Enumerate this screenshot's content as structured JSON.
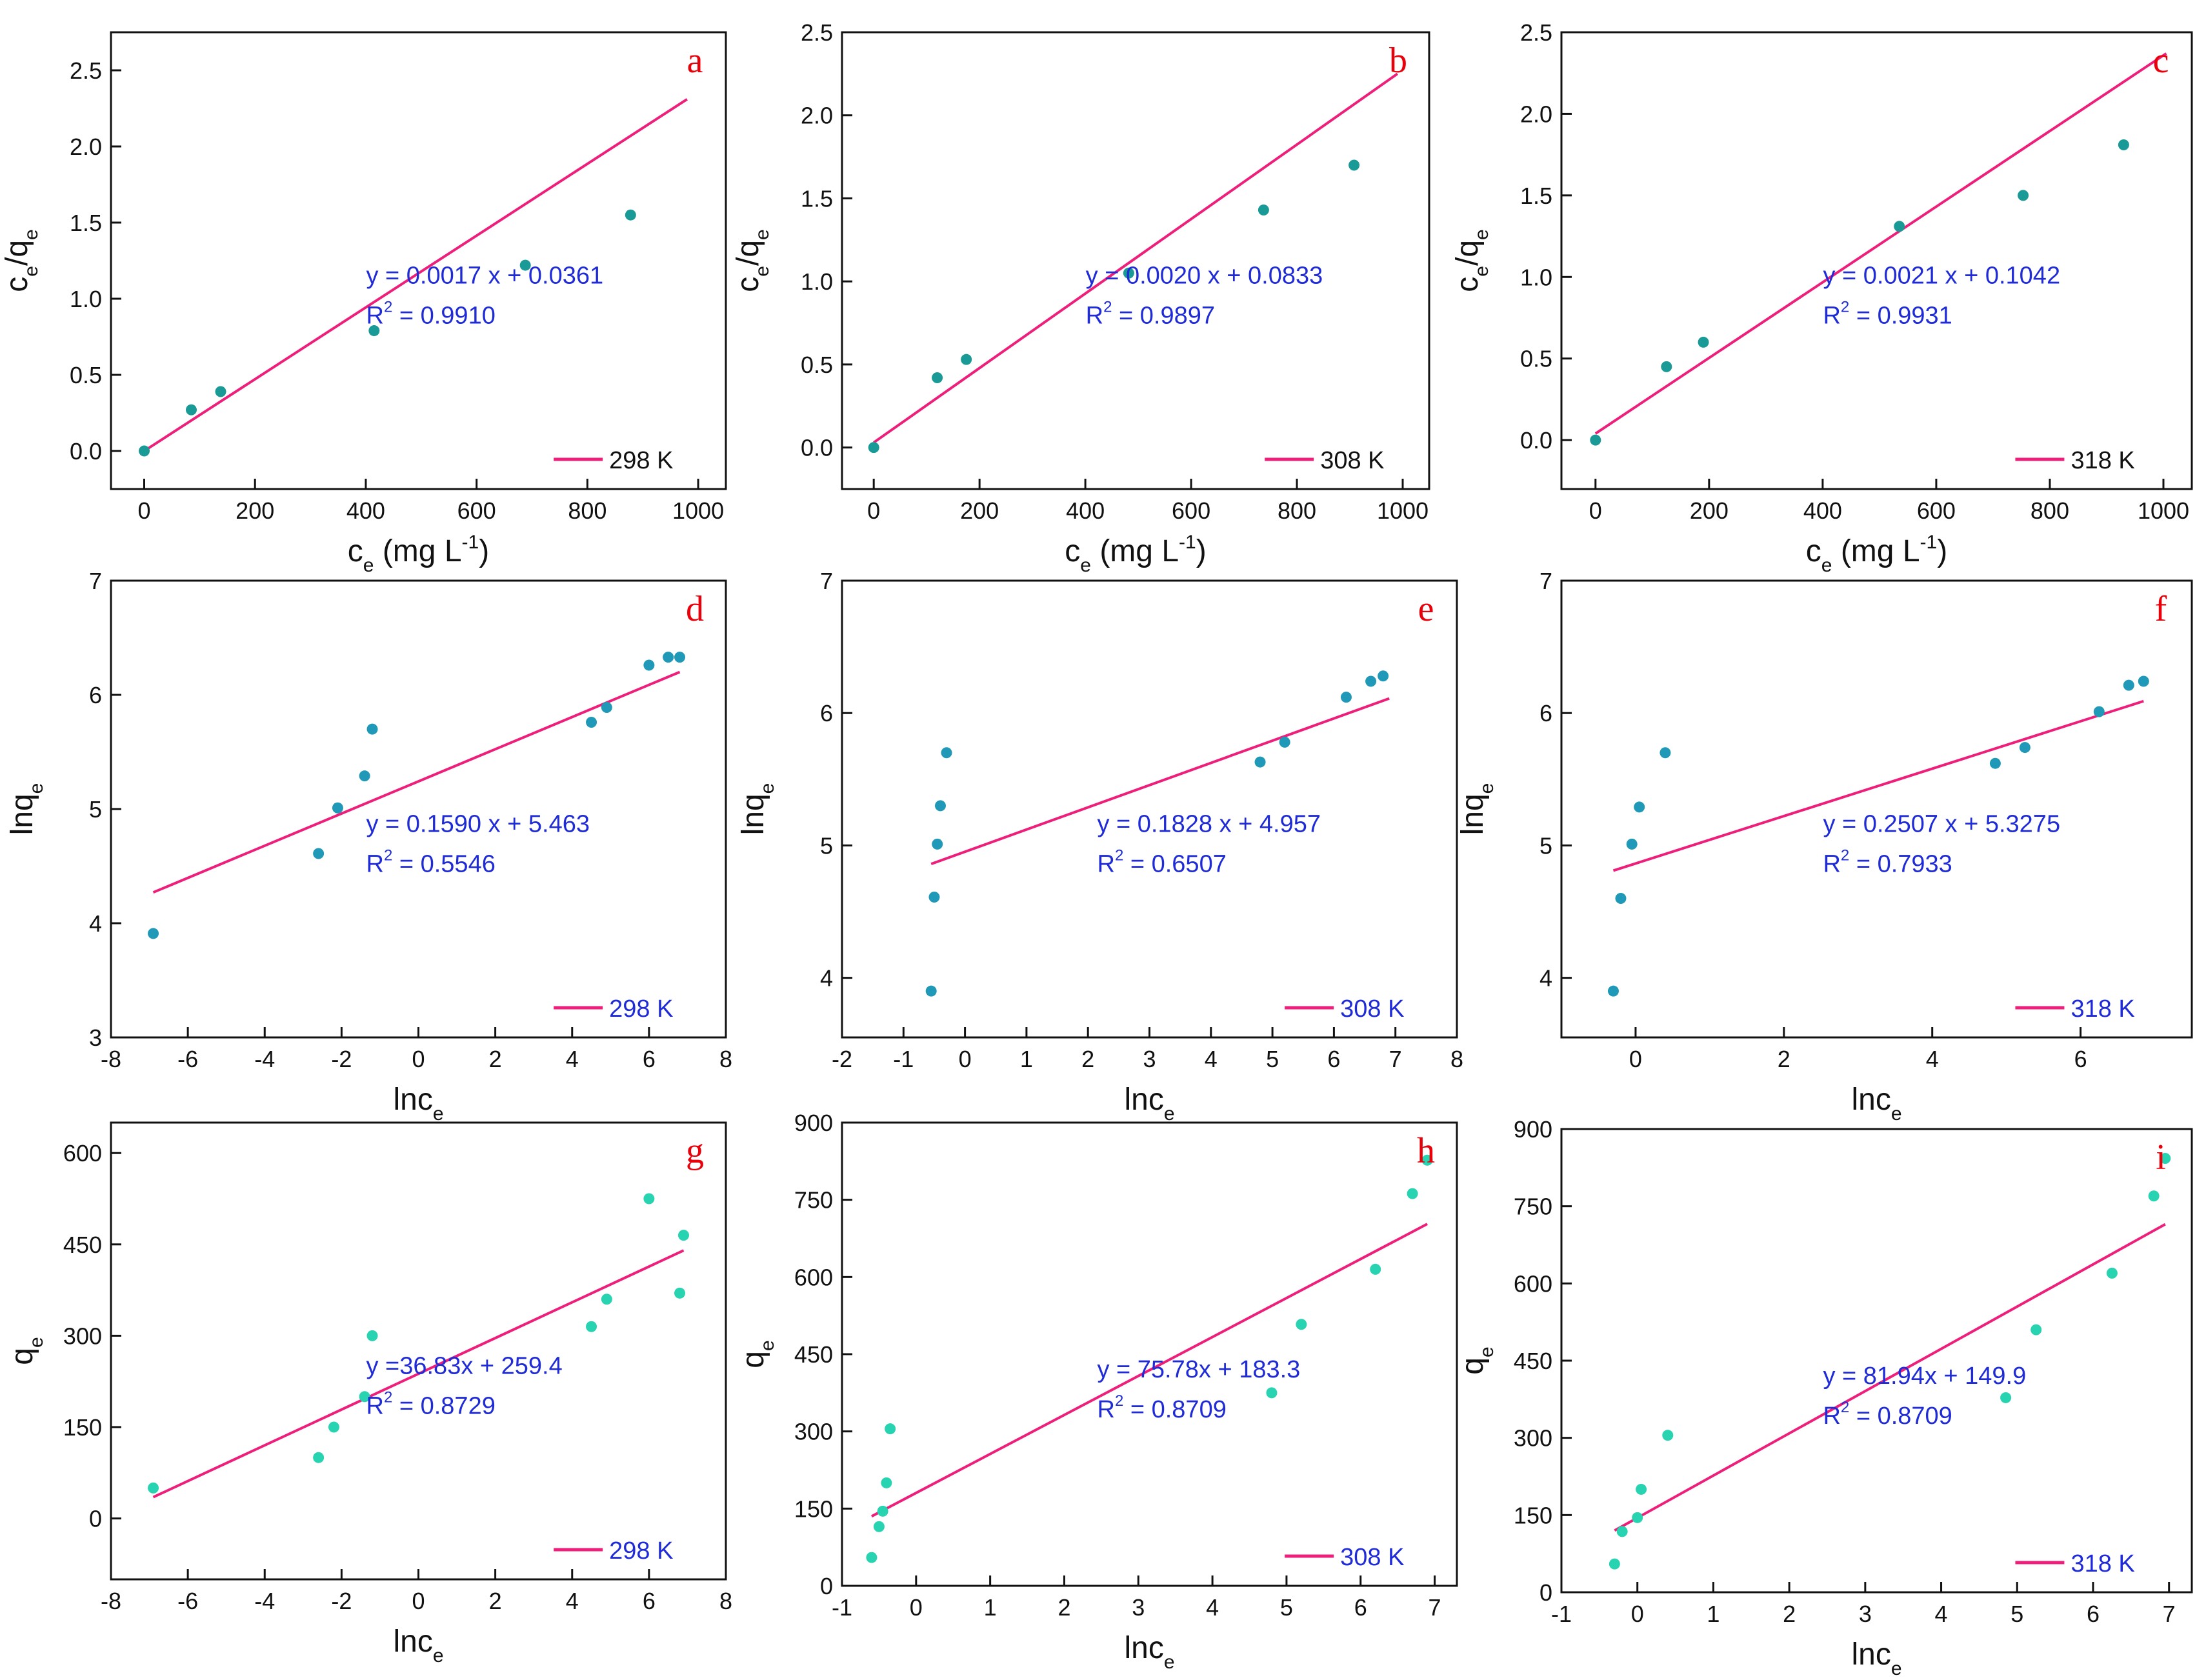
{
  "colors": {
    "fit_line": "#ee1f7a",
    "points_isotherm": "#1a9a96",
    "points_freundlich": "#1f99b7",
    "points_temkin": "#27d3b0",
    "equation_text": "#1f2bd6",
    "panel_letter": "#e8000b"
  },
  "chart_data": [
    {
      "id": "a",
      "type": "scatter",
      "panel_label": "a",
      "xlabel": "c",
      "xlabel_sub": "e",
      "xlabel_unit": " (mg L",
      "xlabel_sup": "-1",
      "xlabel_end": ")",
      "ylabel_parts": [
        "c",
        "e",
        "/q",
        "e"
      ],
      "xlim": [
        -60,
        1050
      ],
      "ylim": [
        -0.25,
        2.75
      ],
      "xticks": [
        0,
        200,
        400,
        600,
        800,
        1000
      ],
      "yticks": [
        0.0,
        0.5,
        1.0,
        1.5,
        2.0,
        2.5
      ],
      "ytick_decimals": 1,
      "points": [
        [
          0,
          0.0
        ],
        [
          85,
          0.27
        ],
        [
          138,
          0.39
        ],
        [
          415,
          0.79
        ],
        [
          688,
          1.22
        ],
        [
          878,
          1.55
        ]
      ],
      "fit_line": [
        [
          0,
          0.0
        ],
        [
          980,
          2.31
        ]
      ],
      "equation": "y = 0.0017 x + 0.0361",
      "r2_label": "R",
      "r2_sup": "2",
      "r2_value": " = 0.9910",
      "legend": "298 K",
      "point_color": "#1a9a96"
    },
    {
      "id": "b",
      "type": "scatter",
      "panel_label": "b",
      "xlabel": "c",
      "xlabel_sub": "e",
      "xlabel_unit": " (mg L",
      "xlabel_sup": "-1",
      "xlabel_end": ")",
      "ylabel_parts": [
        "c",
        "e",
        "/q",
        "e"
      ],
      "xlim": [
        -60,
        1050
      ],
      "ylim": [
        -0.25,
        2.5
      ],
      "xticks": [
        0,
        200,
        400,
        600,
        800,
        1000
      ],
      "yticks": [
        0.0,
        0.5,
        1.0,
        1.5,
        2.0,
        2.5
      ],
      "ytick_decimals": 1,
      "points": [
        [
          0,
          0.0
        ],
        [
          120,
          0.42
        ],
        [
          175,
          0.53
        ],
        [
          482,
          1.05
        ],
        [
          737,
          1.43
        ],
        [
          908,
          1.7
        ]
      ],
      "fit_line": [
        [
          0,
          0.03
        ],
        [
          990,
          2.25
        ]
      ],
      "equation": "y = 0.0020 x + 0.0833",
      "r2_label": "R",
      "r2_sup": "2",
      "r2_value": " = 0.9897",
      "legend": "308 K",
      "point_color": "#1a9a96"
    },
    {
      "id": "c",
      "type": "scatter",
      "panel_label": "c",
      "xlabel": "c",
      "xlabel_sub": "e",
      "xlabel_unit": " (mg L",
      "xlabel_sup": "-1",
      "xlabel_end": ")",
      "ylabel_parts": [
        "c",
        "e",
        "/q",
        "e"
      ],
      "xlim": [
        -60,
        1050
      ],
      "ylim": [
        -0.3,
        2.5
      ],
      "xticks": [
        0,
        200,
        400,
        600,
        800,
        1000
      ],
      "yticks": [
        0.0,
        0.5,
        1.0,
        1.5,
        2.0,
        2.5
      ],
      "ytick_decimals": 1,
      "points": [
        [
          0,
          0.0
        ],
        [
          125,
          0.45
        ],
        [
          190,
          0.6
        ],
        [
          535,
          1.31
        ],
        [
          753,
          1.5
        ],
        [
          930,
          1.81
        ]
      ],
      "fit_line": [
        [
          0,
          0.04
        ],
        [
          1005,
          2.37
        ]
      ],
      "equation": "y = 0.0021 x + 0.1042",
      "r2_label": "R",
      "r2_sup": "2",
      "r2_value": " = 0.9931",
      "legend": "318 K",
      "point_color": "#1a9a96"
    },
    {
      "id": "d",
      "type": "scatter",
      "panel_label": "d",
      "xlabel": "lnc",
      "xlabel_sub": "e",
      "xlabel_unit": "",
      "xlabel_sup": "",
      "xlabel_end": "",
      "ylabel_parts": [
        "lnq",
        "e",
        "",
        ""
      ],
      "xlim": [
        -8,
        8
      ],
      "ylim": [
        3,
        7
      ],
      "xticks": [
        -8,
        -6,
        -4,
        -2,
        0,
        2,
        4,
        6,
        8
      ],
      "yticks": [
        3,
        4,
        5,
        6,
        7
      ],
      "ytick_decimals": 0,
      "points": [
        [
          -6.9,
          3.91
        ],
        [
          -2.6,
          4.61
        ],
        [
          -2.1,
          5.01
        ],
        [
          -1.4,
          5.29
        ],
        [
          -1.2,
          5.7
        ],
        [
          4.5,
          5.76
        ],
        [
          4.9,
          5.89
        ],
        [
          6.0,
          6.26
        ],
        [
          6.5,
          6.33
        ],
        [
          6.8,
          6.33
        ]
      ],
      "fit_line": [
        [
          -6.9,
          4.27
        ],
        [
          6.8,
          6.2
        ]
      ],
      "equation": "y = 0.1590 x + 5.463",
      "r2_label": "R",
      "r2_sup": "2",
      "r2_value": " = 0.5546",
      "legend": "298 K",
      "point_color": "#1f99b7"
    },
    {
      "id": "e",
      "type": "scatter",
      "panel_label": "e",
      "xlabel": "lnc",
      "xlabel_sub": "e",
      "xlabel_unit": "",
      "xlabel_sup": "",
      "xlabel_end": "",
      "ylabel_parts": [
        "lnq",
        "e",
        "",
        ""
      ],
      "xlim": [
        -2,
        8
      ],
      "ylim": [
        3.55,
        7
      ],
      "xticks": [
        -2,
        -1,
        0,
        1,
        2,
        3,
        4,
        5,
        6,
        7,
        8
      ],
      "yticks": [
        4,
        5,
        6,
        7
      ],
      "ytick_decimals": 0,
      "points": [
        [
          -0.55,
          3.9
        ],
        [
          -0.5,
          4.61
        ],
        [
          -0.45,
          5.01
        ],
        [
          -0.4,
          5.3
        ],
        [
          -0.3,
          5.7
        ],
        [
          4.8,
          5.63
        ],
        [
          5.2,
          5.78
        ],
        [
          6.2,
          6.12
        ],
        [
          6.6,
          6.24
        ],
        [
          6.8,
          6.28
        ]
      ],
      "fit_line": [
        [
          -0.55,
          4.86
        ],
        [
          6.9,
          6.11
        ]
      ],
      "equation": "y = 0.1828 x + 4.957",
      "r2_label": "R",
      "r2_sup": "2",
      "r2_value": " = 0.6507",
      "legend": "308 K",
      "point_color": "#1f99b7"
    },
    {
      "id": "f",
      "type": "scatter",
      "panel_label": "f",
      "xlabel": "lnc",
      "xlabel_sub": "e",
      "xlabel_unit": "",
      "xlabel_sup": "",
      "xlabel_end": "",
      "ylabel_parts": [
        "lnq",
        "e",
        "",
        ""
      ],
      "xlim": [
        -1,
        7.5
      ],
      "ylim": [
        3.55,
        7
      ],
      "xticks": [
        0,
        2,
        4,
        6
      ],
      "yticks": [
        4,
        5,
        6,
        7
      ],
      "ytick_decimals": 0,
      "points": [
        [
          -0.3,
          3.9
        ],
        [
          -0.2,
          4.6
        ],
        [
          -0.05,
          5.01
        ],
        [
          0.05,
          5.29
        ],
        [
          0.4,
          5.7
        ],
        [
          4.85,
          5.62
        ],
        [
          5.25,
          5.74
        ],
        [
          6.25,
          6.01
        ],
        [
          6.65,
          6.21
        ],
        [
          6.85,
          6.24
        ]
      ],
      "fit_line": [
        [
          -0.3,
          4.81
        ],
        [
          6.85,
          6.09
        ]
      ],
      "equation": "y = 0.2507 x + 5.3275",
      "r2_label": "R",
      "r2_sup": "2",
      "r2_value": " = 0.7933",
      "legend": "318 K",
      "point_color": "#1f99b7"
    },
    {
      "id": "g",
      "type": "scatter",
      "panel_label": "g",
      "xlabel": "lnc",
      "xlabel_sub": "e",
      "xlabel_unit": "",
      "xlabel_sup": "",
      "xlabel_end": "",
      "ylabel_parts": [
        "q",
        "e",
        "",
        ""
      ],
      "xlim": [
        -8,
        8
      ],
      "ylim": [
        -100,
        650
      ],
      "xticks": [
        -8,
        -6,
        -4,
        -2,
        0,
        2,
        4,
        6,
        8
      ],
      "yticks": [
        0,
        150,
        300,
        450,
        600
      ],
      "ytick_decimals": 0,
      "points": [
        [
          -6.9,
          50
        ],
        [
          -2.6,
          100
        ],
        [
          -2.2,
          150
        ],
        [
          -1.4,
          200
        ],
        [
          -1.2,
          300
        ],
        [
          4.5,
          315
        ],
        [
          4.9,
          360
        ],
        [
          6.0,
          525
        ],
        [
          6.8,
          370
        ],
        [
          6.9,
          465
        ]
      ],
      "fit_line": [
        [
          -6.9,
          35
        ],
        [
          6.9,
          440
        ]
      ],
      "equation": "y =36.83x + 259.4",
      "r2_label": "R",
      "r2_sup": "2",
      "r2_value": " = 0.8729",
      "legend": "298 K",
      "point_color": "#27d3b0"
    },
    {
      "id": "h",
      "type": "scatter",
      "panel_label": "h",
      "xlabel": "lnc",
      "xlabel_sub": "e",
      "xlabel_unit": "",
      "xlabel_sup": "",
      "xlabel_end": "",
      "ylabel_parts": [
        "q",
        "e",
        "",
        ""
      ],
      "xlim": [
        -1,
        7.3
      ],
      "ylim": [
        0,
        900
      ],
      "xticks": [
        -1,
        0,
        1,
        2,
        3,
        4,
        5,
        6,
        7
      ],
      "yticks": [
        0,
        150,
        300,
        450,
        600,
        750,
        900
      ],
      "ytick_decimals": 0,
      "points": [
        [
          -0.6,
          55
        ],
        [
          -0.5,
          115
        ],
        [
          -0.45,
          145
        ],
        [
          -0.4,
          200
        ],
        [
          -0.35,
          305
        ],
        [
          4.8,
          375
        ],
        [
          5.2,
          508
        ],
        [
          6.2,
          615
        ],
        [
          6.7,
          762
        ],
        [
          6.9,
          827
        ]
      ],
      "fit_line": [
        [
          -0.6,
          135
        ],
        [
          6.9,
          703
        ]
      ],
      "equation": "y = 75.78x + 183.3",
      "r2_label": "R",
      "r2_sup": "2",
      "r2_value": " = 0.8709",
      "legend": "308 K",
      "point_color": "#27d3b0"
    },
    {
      "id": "i",
      "type": "scatter",
      "panel_label": "i",
      "xlabel": "lnc",
      "xlabel_sub": "e",
      "xlabel_unit": "",
      "xlabel_sup": "",
      "xlabel_end": "",
      "ylabel_parts": [
        "q",
        "e",
        "",
        ""
      ],
      "xlim": [
        -1,
        7.3
      ],
      "ylim": [
        0,
        900
      ],
      "xticks": [
        -1,
        0,
        1,
        2,
        3,
        4,
        5,
        6,
        7
      ],
      "yticks": [
        0,
        150,
        300,
        450,
        600,
        750,
        900
      ],
      "ytick_decimals": 0,
      "points": [
        [
          -0.3,
          55
        ],
        [
          -0.2,
          118
        ],
        [
          0.0,
          145
        ],
        [
          0.05,
          200
        ],
        [
          0.4,
          305
        ],
        [
          4.85,
          378
        ],
        [
          5.25,
          510
        ],
        [
          6.25,
          620
        ],
        [
          6.8,
          770
        ],
        [
          6.95,
          843
        ]
      ],
      "fit_line": [
        [
          -0.3,
          120
        ],
        [
          6.95,
          715
        ]
      ],
      "equation": "y = 81.94x + 149.9",
      "r2_label": "R",
      "r2_sup": "2",
      "r2_value": " = 0.8709",
      "legend": "318 K",
      "point_color": "#27d3b0"
    }
  ]
}
